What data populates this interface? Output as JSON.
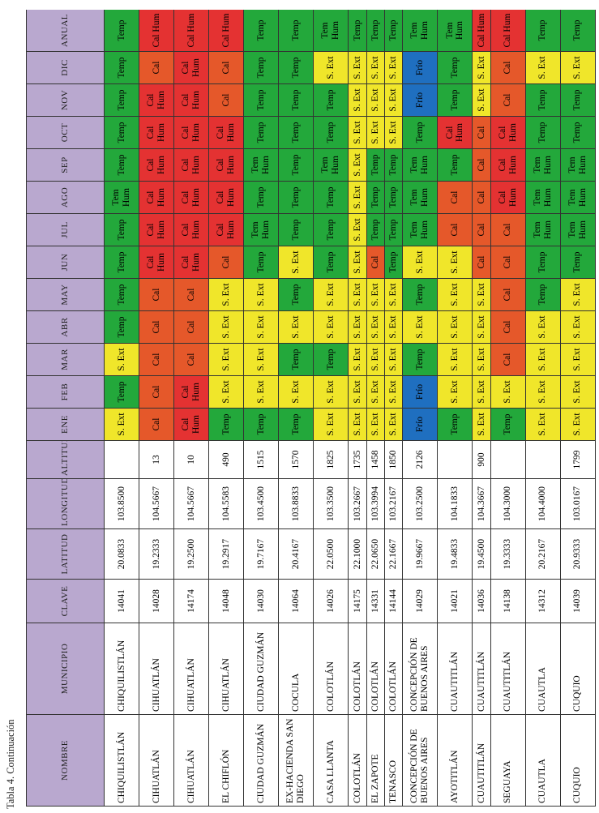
{
  "caption": "Tabla 4. Continuación",
  "headers": [
    "NOMBRE",
    "MUNICIPIO",
    "CLAVE",
    "LATITUD",
    "LONGITUD",
    "ALTITUD",
    "ENE",
    "FEB",
    "MAR",
    "ABR",
    "MAY",
    "JUN",
    "JUL",
    "AGO",
    "SEP",
    "OCT",
    "NOV",
    "DIC",
    "ANUAL"
  ],
  "colors": {
    "Temp": "#23a83b",
    "Cal": "#e5582a",
    "Cal Hum": "#e43232",
    "S. Ext": "#f0e62a",
    "Frío": "#1f6fc0",
    "Tem Hum": "#23a83b"
  },
  "rows": [
    [
      "CHIQUILISTLÁN",
      "CHIQUILISTLÁN",
      "14041",
      "20.0833",
      "103.8500",
      "",
      "S. Ext",
      "Temp",
      "S. Ext",
      "Temp",
      "Temp",
      "Temp",
      "Temp",
      "Tem Hum",
      "Temp",
      "Temp",
      "Temp",
      "Temp",
      "Temp"
    ],
    [
      "CIHUATLÁN",
      "CIHUATLÁN",
      "14028",
      "19.2333",
      "104.5667",
      "13",
      "Cal",
      "Cal",
      "Cal",
      "Cal",
      "Cal",
      "Cal Hum",
      "Cal Hum",
      "Cal Hum",
      "Cal Hum",
      "Cal Hum",
      "Cal Hum",
      "Cal",
      "Cal Hum"
    ],
    [
      "CIHUATLÁN",
      "CIHUATLÁN",
      "14174",
      "19.2500",
      "104.5667",
      "10",
      "Cal Hum",
      "Cal Hum",
      "Cal",
      "Cal",
      "Cal",
      "Cal Hum",
      "Cal Hum",
      "Cal Hum",
      "Cal Hum",
      "Cal Hum",
      "Cal Hum",
      "Cal Hum",
      "Cal Hum"
    ],
    [
      "EL CHIFLÓN",
      "CIHUATLÁN",
      "14048",
      "19.2917",
      "104.5583",
      "490",
      "Temp",
      "S. Ext",
      "S. Ext",
      "S. Ext",
      "S. Ext",
      "Cal",
      "Cal Hum",
      "Cal Hum",
      "Cal Hum",
      "Cal Hum",
      "Cal",
      "Cal",
      "Cal Hum"
    ],
    [
      "CIUDAD GUZMÁN",
      "CIUDAD GUZMÁN",
      "14030",
      "19.7167",
      "103.4500",
      "1515",
      "Temp",
      "S. Ext",
      "S. Ext",
      "S. Ext",
      "S. Ext",
      "Temp",
      "Tem Hum",
      "Temp",
      "Tem Hum",
      "Temp",
      "Temp",
      "Temp",
      "Temp"
    ],
    [
      "EX-HACIENDA SAN DIEGO",
      "COCULA",
      "14064",
      "20.4167",
      "103.8833",
      "1570",
      "Temp",
      "S. Ext",
      "Temp",
      "S. Ext",
      "Temp",
      "S. Ext",
      "Temp",
      "Temp",
      "Temp",
      "Temp",
      "Temp",
      "Temp",
      "Temp"
    ],
    [
      "CASA LLANTA",
      "COLOTLÁN",
      "14026",
      "22.0500",
      "103.3500",
      "1825",
      "S. Ext",
      "S. Ext",
      "Temp",
      "S. Ext",
      "S. Ext",
      "Temp",
      "Temp",
      "Temp",
      "Tem Hum",
      "Temp",
      "Temp",
      "S. Ext",
      "Tem Hum"
    ],
    [
      "COLOTLÁN",
      "COLOTLÁN",
      "14175",
      "22.1000",
      "103.2667",
      "1735",
      "S. Ext",
      "S. Ext",
      "S. Ext",
      "S. Ext",
      "S. Ext",
      "S. Ext",
      "S. Ext",
      "S. Ext",
      "S. Ext",
      "S. Ext",
      "S. Ext",
      "S. Ext",
      "Temp"
    ],
    [
      "EL ZAPOTE",
      "COLOTLÁN",
      "14331",
      "22.0650",
      "103.3994",
      "1458",
      "S. Ext",
      "S. Ext",
      "S. Ext",
      "S. Ext",
      "S. Ext",
      "Cal",
      "Temp",
      "Temp",
      "Temp",
      "S. Ext",
      "S. Ext",
      "S. Ext",
      "Temp"
    ],
    [
      "TENASCO",
      "COLOTLÁN",
      "14144",
      "22.1667",
      "103.2167",
      "1850",
      "S. Ext",
      "S. Ext",
      "S. Ext",
      "S. Ext",
      "S. Ext",
      "Temp",
      "Temp",
      "Temp",
      "Temp",
      "S. Ext",
      "S. Ext",
      "S. Ext",
      "Temp"
    ],
    [
      "CONCEPCIÓN DE BUENOS AIRES",
      "CONCEPCIÓN DE BUENOS AIRES",
      "14029",
      "19.9667",
      "103.2500",
      "2126",
      "Frío",
      "Frío",
      "Temp",
      "S. Ext",
      "Temp",
      "S. Ext",
      "Tem Hum",
      "Tem Hum",
      "Tem Hum",
      "Temp",
      "Frío",
      "Frío",
      "Tem Hum"
    ],
    [
      "AYOTITLÁN",
      "CUAUTITLÁN",
      "14021",
      "19.4833",
      "104.1833",
      "",
      "Temp",
      "S. Ext",
      "S. Ext",
      "S. Ext",
      "S. Ext",
      "S. Ext",
      "Cal",
      "Cal",
      "Temp",
      "Cal Hum",
      "Temp",
      "Temp",
      "Tem Hum"
    ],
    [
      "CUAUTITLÁN",
      "CUAUTITLÁN",
      "14036",
      "19.4500",
      "104.3667",
      "900",
      "S. Ext",
      "S. Ext",
      "S. Ext",
      "S. Ext",
      "S. Ext",
      "Cal",
      "Cal",
      "Cal",
      "Cal",
      "Cal",
      "S. Ext",
      "S. Ext",
      "Cal Hum"
    ],
    [
      "SEGUAYA",
      "CUAUTITLÁN",
      "14138",
      "19.3333",
      "104.3000",
      "",
      "Temp",
      "S. Ext",
      "Cal",
      "Cal",
      "Cal",
      "Cal",
      "Cal",
      "Cal Hum",
      "Cal Hum",
      "Cal Hum",
      "Cal",
      "Cal",
      "Cal Hum"
    ],
    [
      "CUAUTLA",
      "CUAUTLA",
      "14312",
      "20.2167",
      "104.4000",
      "",
      "S. Ext",
      "S. Ext",
      "S. Ext",
      "S. Ext",
      "Temp",
      "Temp",
      "Tem Hum",
      "Tem Hum",
      "Tem Hum",
      "Temp",
      "Temp",
      "S. Ext",
      "Temp"
    ],
    [
      "CUQUIO",
      "CUQUIO",
      "14039",
      "20.9333",
      "103.0167",
      "1799",
      "S. Ext",
      "S. Ext",
      "S. Ext",
      "S. Ext",
      "S. Ext",
      "Temp",
      "Tem Hum",
      "Tem Hum",
      "Tem Hum",
      "Temp",
      "Temp",
      "S. Ext",
      "Temp"
    ]
  ]
}
